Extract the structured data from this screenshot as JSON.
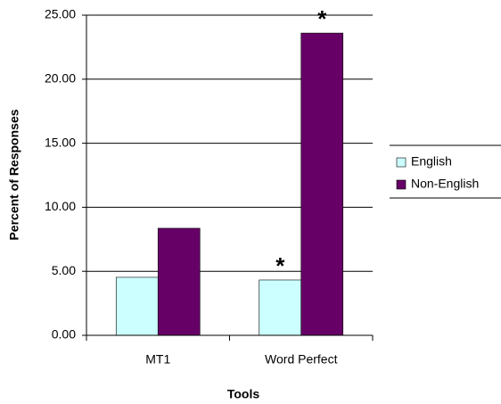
{
  "chart_data": {
    "type": "bar",
    "categories": [
      "MT1",
      "Word Perfect"
    ],
    "series": [
      {
        "name": "English",
        "color": "#ccffff",
        "values": [
          4.53,
          4.32
        ]
      },
      {
        "name": "Non-English",
        "color": "#660066",
        "values": [
          8.36,
          23.6
        ]
      }
    ],
    "annotations": [
      {
        "text": "*"
      },
      {
        "text": "*"
      }
    ],
    "x_label": "Tools",
    "y_label": "Percent of Responses",
    "ylim": [
      0,
      25
    ],
    "yticks": [
      {
        "value": 0,
        "label": "0.00"
      },
      {
        "value": 5,
        "label": "5.00"
      },
      {
        "value": 10,
        "label": "10.00"
      },
      {
        "value": 15,
        "label": "15.00"
      },
      {
        "value": 20,
        "label": "20.00"
      },
      {
        "value": 25,
        "label": "25.00"
      }
    ],
    "grid": true,
    "legend": "right"
  }
}
